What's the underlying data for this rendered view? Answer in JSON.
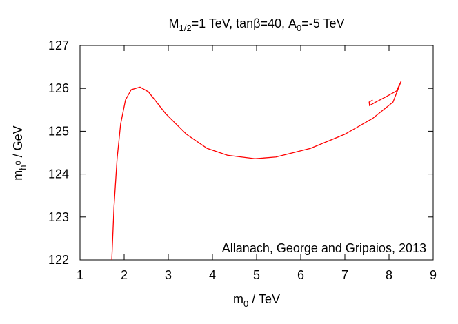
{
  "chart_data": {
    "type": "line",
    "title": [
      "M",
      "1/2",
      "=1 TeV, tanβ=40, A",
      "0",
      "=-5 TeV"
    ],
    "x_label": [
      "m",
      "0",
      " / TeV"
    ],
    "y_label": [
      "m",
      "h",
      "0",
      " / GeV"
    ],
    "annotation": "Allanach, George and Gripaios, 2013",
    "xlim": [
      1,
      9
    ],
    "xticks": [
      1,
      2,
      3,
      4,
      5,
      6,
      7,
      8,
      9
    ],
    "ylim": [
      122,
      127
    ],
    "yticks": [
      122,
      123,
      124,
      125,
      126,
      127
    ],
    "series": [
      {
        "color": "#ff0000",
        "x": [
          1.72,
          1.77,
          1.84,
          1.92,
          2.03,
          2.16,
          2.36,
          2.55,
          2.94,
          3.41,
          3.88,
          4.34,
          4.97,
          5.44,
          6.22,
          7.0,
          7.63,
          8.09,
          8.28,
          8.17,
          7.94,
          7.7,
          7.56,
          7.55,
          7.63
        ],
        "values": [
          122,
          123.24,
          124.36,
          125.17,
          125.73,
          125.97,
          126.03,
          125.92,
          125.41,
          124.93,
          124.6,
          124.44,
          124.36,
          124.4,
          124.6,
          124.93,
          125.3,
          125.68,
          126.18,
          125.94,
          125.81,
          125.68,
          125.6,
          125.68,
          125.73
        ]
      }
    ]
  }
}
